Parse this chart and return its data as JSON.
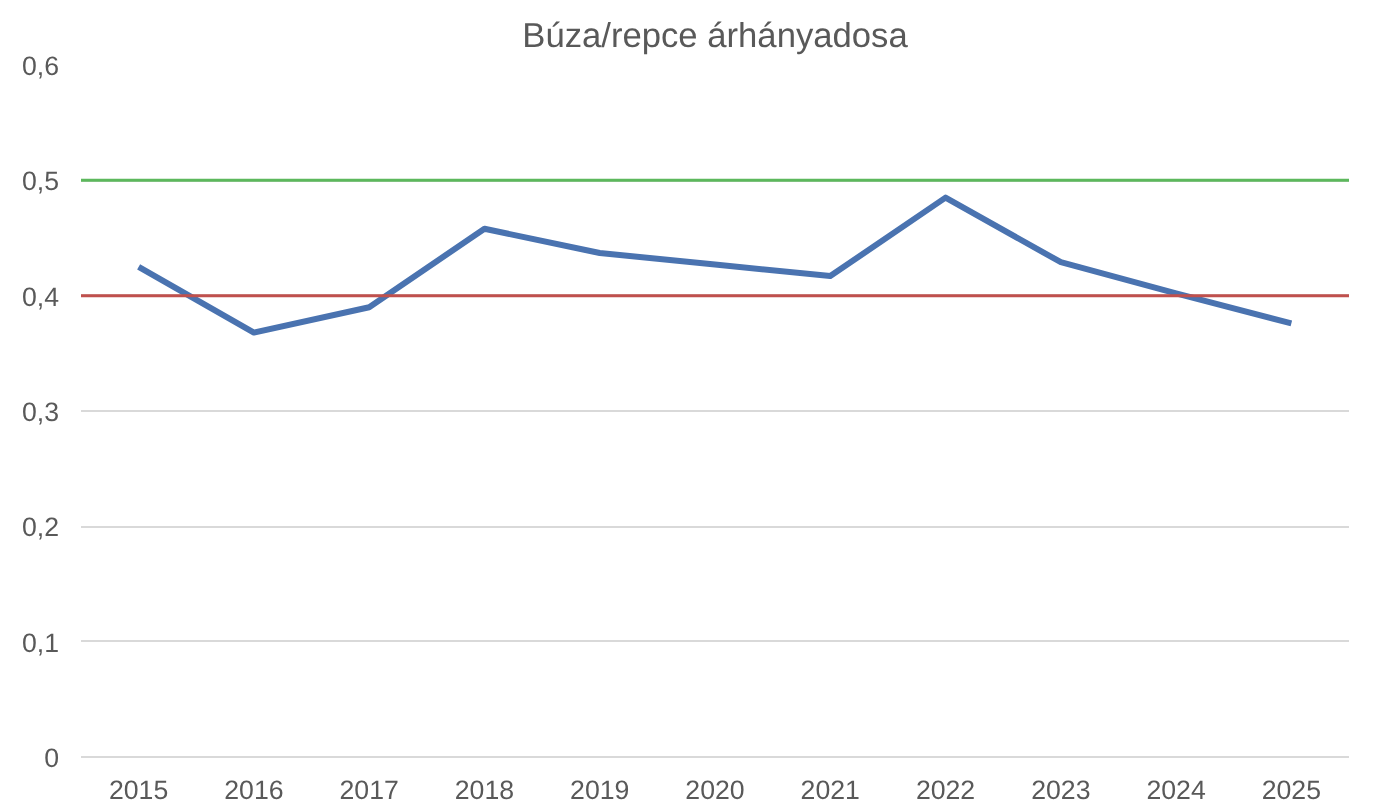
{
  "chart_data": {
    "type": "line",
    "title": "Búza/repce árhányadosa",
    "categories": [
      "2015",
      "2016",
      "2017",
      "2018",
      "2019",
      "2020",
      "2021",
      "2022",
      "2023",
      "2024",
      "2025"
    ],
    "series": [
      {
        "color": "#4a73b0",
        "values": [
          0.425,
          0.368,
          0.39,
          0.458,
          0.437,
          0.427,
          0.417,
          0.485,
          0.429,
          0.402,
          0.376
        ]
      }
    ],
    "ylim": [
      0,
      0.6
    ],
    "yticks": [
      {
        "value": 0,
        "label": "0"
      },
      {
        "value": 0.1,
        "label": "0,1"
      },
      {
        "value": 0.2,
        "label": "0,2"
      },
      {
        "value": 0.3,
        "label": "0,3"
      },
      {
        "value": 0.4,
        "label": "0,4"
      },
      {
        "value": 0.5,
        "label": "0,5"
      },
      {
        "value": 0.6,
        "label": "0,6"
      }
    ],
    "ref_lines": [
      {
        "axis": "y",
        "value": 0.5,
        "color": "#5cb85c"
      },
      {
        "axis": "y",
        "value": 0.4,
        "color": "#c0504d"
      }
    ],
    "grid": "y",
    "marker": "none",
    "line_style": "solid"
  }
}
